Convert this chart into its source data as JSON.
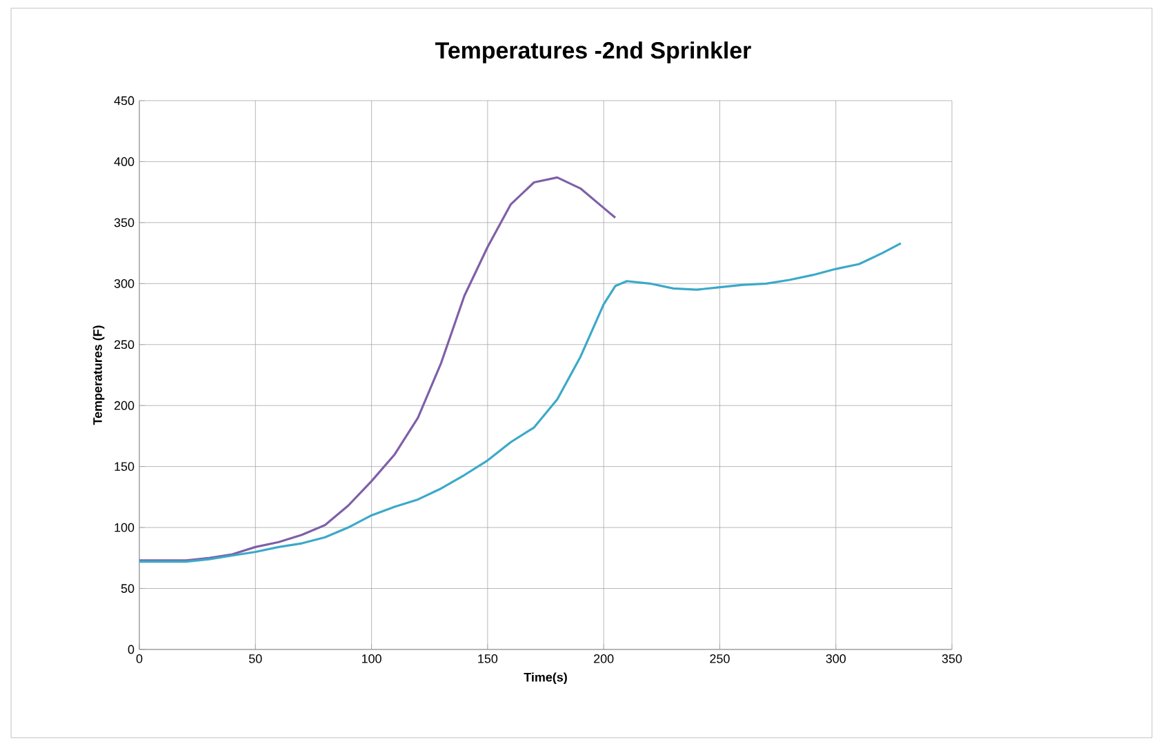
{
  "chart_data": {
    "type": "line",
    "title": "Temperatures -2nd Sprinkler",
    "xlabel": "Time(s)",
    "ylabel": "Temperatures (F)",
    "xlim": [
      0,
      350
    ],
    "xticks": [
      0,
      50,
      100,
      150,
      200,
      250,
      300,
      350
    ],
    "ylim": [
      0,
      450
    ],
    "yticks": [
      0,
      50,
      100,
      150,
      200,
      250,
      300,
      350,
      400,
      450
    ],
    "grid": true,
    "marker": "none",
    "line_style": "solid",
    "series": [
      {
        "color": "#7f5fa8",
        "x": [
          0,
          20,
          30,
          40,
          50,
          60,
          70,
          80,
          90,
          100,
          110,
          120,
          130,
          140,
          150,
          160,
          170,
          180,
          190,
          200,
          205
        ],
        "values": [
          73,
          73,
          75,
          78,
          84,
          88,
          94,
          102,
          118,
          138,
          160,
          190,
          235,
          290,
          330,
          365,
          383,
          387,
          378,
          362,
          354
        ]
      },
      {
        "color": "#3ba9c9",
        "x": [
          0,
          20,
          30,
          40,
          50,
          60,
          70,
          80,
          90,
          100,
          110,
          120,
          130,
          140,
          150,
          160,
          170,
          180,
          190,
          200,
          205,
          210,
          220,
          230,
          240,
          250,
          260,
          270,
          280,
          290,
          300,
          310,
          320,
          328
        ],
        "values": [
          72,
          72,
          74,
          77,
          80,
          84,
          87,
          92,
          100,
          110,
          117,
          123,
          132,
          143,
          155,
          170,
          182,
          205,
          240,
          283,
          298,
          302,
          300,
          296,
          295,
          297,
          299,
          300,
          303,
          307,
          312,
          316,
          325,
          333
        ]
      }
    ]
  }
}
